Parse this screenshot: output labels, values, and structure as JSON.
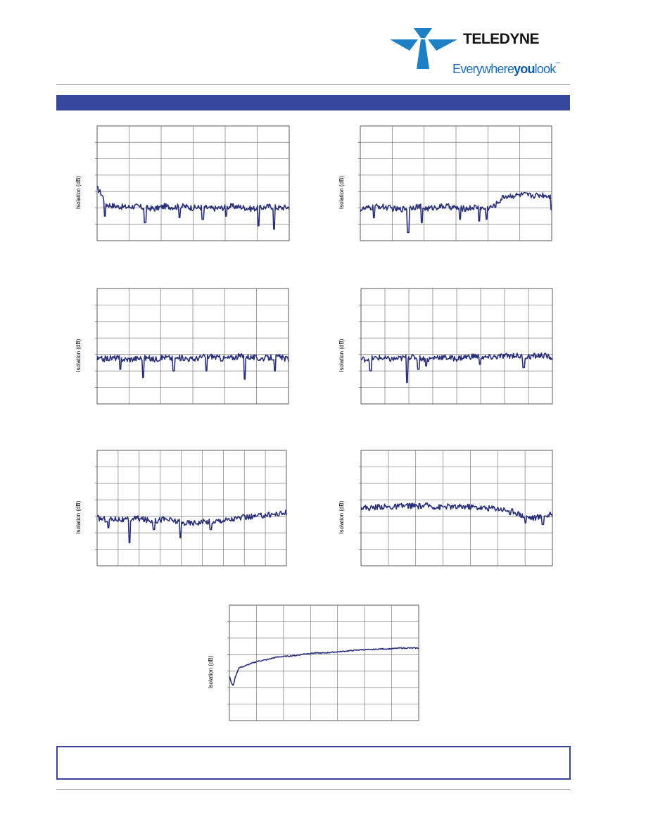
{
  "brand": {
    "name": "TELEDYNE",
    "tagline_a": "Everywhere",
    "tagline_b": "you",
    "tagline_c": "look",
    "tagline_tm": "™",
    "primary_color": "#36479b",
    "logo_color": "#1d7fc4"
  },
  "chart_data": [
    {
      "type": "line",
      "ylabel": "Isolation (dB)",
      "gridx": 6,
      "gridy": 7,
      "ylim": [
        0,
        7
      ],
      "line_color": "#2a2f7a",
      "x": [
        0,
        0.02,
        0.05,
        0.1,
        0.15,
        0.2,
        0.25,
        0.3,
        0.35,
        0.4,
        0.45,
        0.5,
        0.55,
        0.6,
        0.65,
        0.7,
        0.75,
        0.8,
        0.85,
        0.9,
        0.95,
        1.0
      ],
      "y": [
        3.2,
        2.9,
        2.2,
        2.1,
        2.05,
        2.1,
        2.0,
        1.95,
        2.1,
        2.05,
        2.1,
        2.0,
        2.05,
        1.95,
        2.0,
        2.1,
        2.05,
        1.95,
        2.0,
        2.1,
        2.0,
        2.05
      ],
      "dips": [
        [
          0.04,
          1.5
        ],
        [
          0.25,
          1.1
        ],
        [
          0.43,
          1.4
        ],
        [
          0.55,
          1.3
        ],
        [
          0.67,
          1.5
        ],
        [
          0.84,
          0.9
        ],
        [
          0.92,
          0.7
        ]
      ]
    },
    {
      "type": "line",
      "ylabel": "Isolation (dB)",
      "gridx": 6,
      "gridy": 7,
      "ylim": [
        0,
        7
      ],
      "line_color": "#2a2f7a",
      "x": [
        0,
        0.05,
        0.1,
        0.15,
        0.2,
        0.25,
        0.3,
        0.35,
        0.4,
        0.45,
        0.5,
        0.55,
        0.6,
        0.65,
        0.7,
        0.75,
        0.8,
        0.85,
        0.9,
        0.95,
        1.0
      ],
      "y": [
        1.9,
        2.0,
        2.1,
        2.0,
        1.9,
        2.0,
        2.1,
        1.95,
        2.05,
        2.1,
        2.0,
        1.95,
        2.05,
        1.95,
        2.1,
        2.7,
        2.75,
        2.8,
        2.75,
        2.8,
        2.7
      ],
      "dips": [
        [
          0.07,
          1.4
        ],
        [
          0.25,
          0.5
        ],
        [
          0.32,
          1.1
        ],
        [
          0.52,
          1.3
        ],
        [
          0.62,
          1.2
        ],
        [
          0.66,
          1.3
        ],
        [
          1.0,
          1.9
        ]
      ]
    },
    {
      "type": "line",
      "ylabel": "Isolation (dB)",
      "gridx": 6,
      "gridy": 7,
      "ylim": [
        0,
        7
      ],
      "line_color": "#2a2f7a",
      "x": [
        0,
        0.05,
        0.1,
        0.15,
        0.2,
        0.25,
        0.3,
        0.35,
        0.4,
        0.45,
        0.5,
        0.55,
        0.6,
        0.65,
        0.7,
        0.75,
        0.8,
        0.85,
        0.9,
        0.95,
        1.0
      ],
      "y": [
        2.7,
        2.75,
        2.8,
        2.7,
        2.75,
        2.8,
        2.7,
        2.85,
        2.75,
        2.8,
        2.7,
        2.85,
        2.9,
        2.75,
        2.8,
        2.9,
        2.85,
        2.75,
        2.8,
        2.85,
        2.7
      ],
      "dips": [
        [
          0.12,
          2.1
        ],
        [
          0.24,
          1.6
        ],
        [
          0.4,
          2.0
        ],
        [
          0.57,
          2.0
        ],
        [
          0.77,
          1.5
        ],
        [
          0.93,
          2.0
        ]
      ]
    },
    {
      "type": "line",
      "ylabel": "Isolation (dB)",
      "gridx": 8,
      "gridy": 7,
      "ylim": [
        0,
        7
      ],
      "line_color": "#2a2f7a",
      "x": [
        0,
        0.05,
        0.1,
        0.15,
        0.2,
        0.25,
        0.3,
        0.35,
        0.4,
        0.45,
        0.5,
        0.55,
        0.6,
        0.65,
        0.7,
        0.75,
        0.8,
        0.85,
        0.9,
        0.95,
        1.0
      ],
      "y": [
        2.7,
        2.75,
        2.8,
        2.7,
        2.75,
        2.85,
        2.8,
        2.7,
        2.85,
        2.8,
        2.75,
        2.85,
        2.9,
        2.8,
        2.85,
        2.9,
        2.95,
        2.85,
        2.9,
        2.95,
        2.8
      ],
      "dips": [
        [
          0.05,
          2.0
        ],
        [
          0.24,
          1.3
        ],
        [
          0.3,
          2.1
        ],
        [
          0.34,
          2.3
        ],
        [
          0.62,
          2.4
        ],
        [
          0.85,
          2.2
        ]
      ]
    },
    {
      "type": "line",
      "ylabel": "Isolation (dB)",
      "gridx": 9,
      "gridy": 7,
      "ylim": [
        0,
        7
      ],
      "line_color": "#2a2f7a",
      "x": [
        0,
        0.05,
        0.1,
        0.15,
        0.2,
        0.25,
        0.3,
        0.35,
        0.4,
        0.45,
        0.5,
        0.55,
        0.6,
        0.65,
        0.7,
        0.75,
        0.8,
        0.85,
        0.9,
        0.95,
        1.0
      ],
      "y": [
        2.9,
        2.8,
        2.85,
        2.75,
        2.9,
        2.8,
        2.7,
        2.85,
        2.75,
        2.6,
        2.6,
        2.65,
        2.7,
        2.75,
        2.8,
        2.9,
        2.95,
        3.0,
        3.1,
        3.15,
        3.2
      ],
      "dips": [
        [
          0.06,
          2.3
        ],
        [
          0.17,
          1.4
        ],
        [
          0.3,
          2.2
        ],
        [
          0.44,
          1.7
        ],
        [
          0.6,
          2.2
        ],
        [
          0.62,
          2.6
        ]
      ]
    },
    {
      "type": "line",
      "ylabel": "Isolation (dB)",
      "gridx": 7,
      "gridy": 7,
      "ylim": [
        0,
        7
      ],
      "line_color": "#2a2f7a",
      "x": [
        0,
        0.05,
        0.1,
        0.15,
        0.2,
        0.25,
        0.3,
        0.35,
        0.4,
        0.45,
        0.5,
        0.55,
        0.6,
        0.65,
        0.7,
        0.75,
        0.8,
        0.85,
        0.9,
        0.95,
        1.0
      ],
      "y": [
        3.55,
        3.5,
        3.6,
        3.55,
        3.6,
        3.65,
        3.6,
        3.65,
        3.55,
        3.6,
        3.55,
        3.6,
        3.55,
        3.5,
        3.5,
        3.4,
        3.3,
        3.0,
        2.9,
        3.0,
        3.1
      ],
      "dips": [
        [
          0.78,
          3.1
        ],
        [
          0.86,
          2.6
        ],
        [
          0.95,
          2.5
        ]
      ]
    },
    {
      "type": "line",
      "ylabel": "Isolation (dB)",
      "gridx": 7,
      "gridy": 7,
      "ylim": [
        0,
        7
      ],
      "line_color": "#2a2f7a",
      "x": [
        0,
        0.01,
        0.02,
        0.03,
        0.05,
        0.08,
        0.1,
        0.15,
        0.2,
        0.25,
        0.3,
        0.35,
        0.4,
        0.45,
        0.5,
        0.55,
        0.6,
        0.65,
        0.7,
        0.75,
        0.8,
        0.85,
        0.9,
        0.95,
        1.0
      ],
      "y": [
        2.7,
        2.3,
        2.1,
        2.6,
        3.2,
        3.3,
        3.4,
        3.6,
        3.7,
        3.85,
        3.9,
        3.95,
        4.05,
        4.1,
        4.1,
        4.15,
        4.2,
        4.25,
        4.3,
        4.3,
        4.35,
        4.35,
        4.4,
        4.4,
        4.4
      ],
      "dips": []
    }
  ]
}
